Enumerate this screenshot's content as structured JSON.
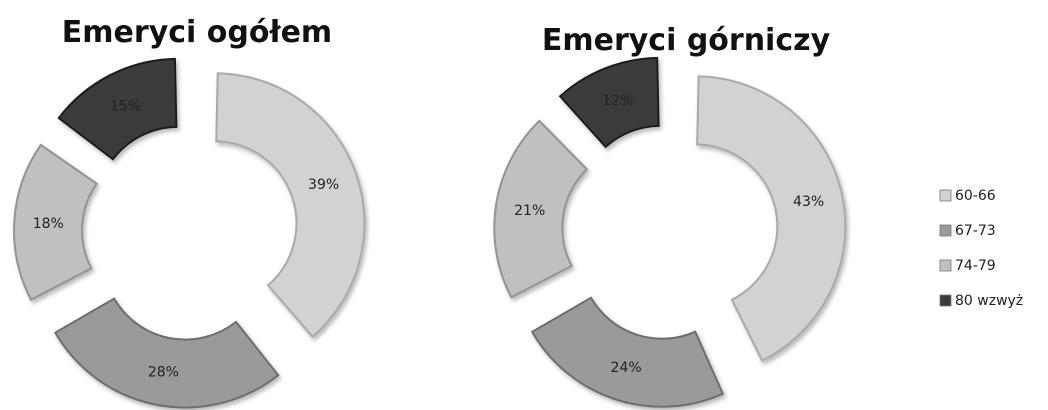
{
  "chart_data": [
    {
      "type": "pie",
      "variant": "exploded-donut",
      "title": "Emeryci ogółem",
      "categories": [
        "60-66",
        "67-73",
        "74-79",
        "80 wzwyż"
      ],
      "values": [
        39,
        28,
        18,
        15
      ],
      "labels": [
        "39%",
        "28%",
        "18%",
        "15%"
      ]
    },
    {
      "type": "pie",
      "variant": "exploded-donut",
      "title": "Emeryci górniczy",
      "categories": [
        "60-66",
        "67-73",
        "74-79",
        "80 wzwyż"
      ],
      "values": [
        43,
        24,
        21,
        12
      ],
      "labels": [
        "43%",
        "24%",
        "21%",
        "12%"
      ]
    }
  ],
  "legend": {
    "placement": "right",
    "items": [
      {
        "label": "60-66",
        "color": "#d2d2d2"
      },
      {
        "label": "67-73",
        "color": "#9a9a9a"
      },
      {
        "label": "74-79",
        "color": "#c0c0c0"
      },
      {
        "label": "80 wzwyż",
        "color": "#3a3a3a"
      }
    ]
  },
  "colors": {
    "slice_fill": [
      "#d2d2d2",
      "#9a9a9a",
      "#c0c0c0",
      "#3a3a3a"
    ],
    "slice_edge": [
      "#a9a9a9",
      "#6e6e6e",
      "#939393",
      "#1e1e1e"
    ]
  }
}
